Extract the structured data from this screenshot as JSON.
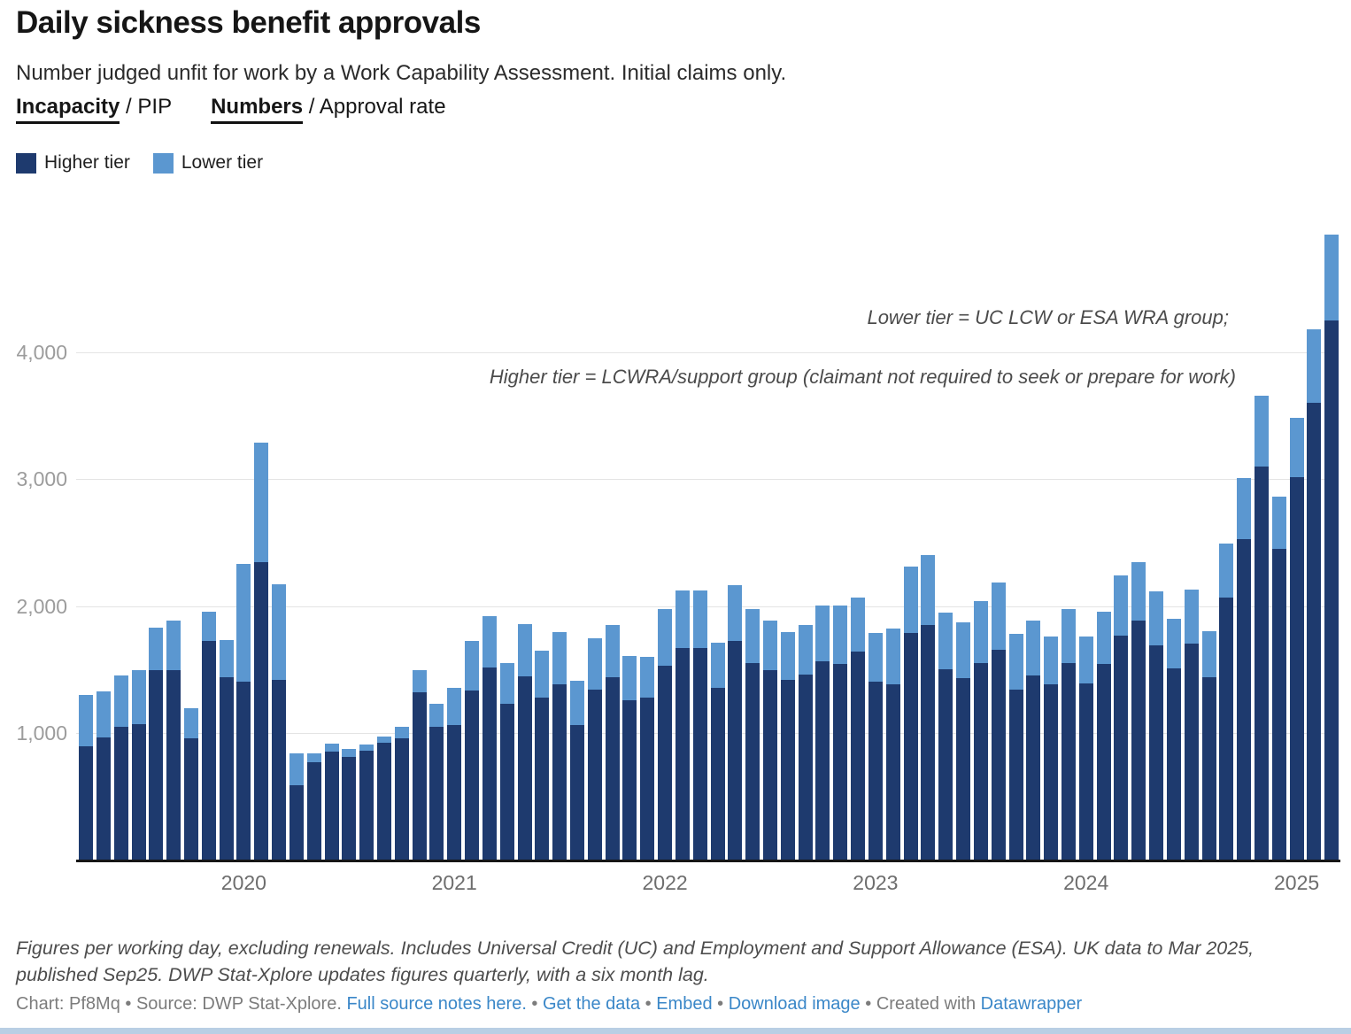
{
  "header": {
    "title": "Daily sickness benefit approvals",
    "subtitle": "Number judged unfit for work by a Work Capability Assessment. Initial claims only.",
    "toggle_benefit": {
      "active": "Incapacity",
      "rest": " / PIP"
    },
    "toggle_metric": {
      "active": "Numbers",
      "rest": " / Approval rate"
    }
  },
  "legend": [
    {
      "label": "Higher tier",
      "color": "#1e3a6e"
    },
    {
      "label": "Lower tier",
      "color": "#5b97d0"
    }
  ],
  "annotations": {
    "line1": "Lower tier = UC LCW or ESA WRA group;",
    "line2": "Higher tier = LCWRA/support group (claimant not required to seek or prepare for work)"
  },
  "colors": {
    "higher": "#1e3a6e",
    "lower": "#5b97d0",
    "grid": "#e4e4e4",
    "axis": "#161616",
    "link": "#3a87c8"
  },
  "chart_data": {
    "type": "bar",
    "stacked": true,
    "title": "Daily sickness benefit approvals",
    "xlabel": "",
    "ylabel": "",
    "ylim": [
      0,
      5000
    ],
    "grid": "horizontal",
    "legend_position": "top-left",
    "categories": [
      "Apr 2019",
      "May 2019",
      "Jun 2019",
      "Jul 2019",
      "Aug 2019",
      "Sep 2019",
      "Oct 2019",
      "Nov 2019",
      "Dec 2019",
      "Jan 2020",
      "Feb 2020",
      "Mar 2020",
      "Apr 2020",
      "May 2020",
      "Jun 2020",
      "Jul 2020",
      "Aug 2020",
      "Sep 2020",
      "Oct 2020",
      "Nov 2020",
      "Dec 2020",
      "Jan 2021",
      "Feb 2021",
      "Mar 2021",
      "Apr 2021",
      "May 2021",
      "Jun 2021",
      "Jul 2021",
      "Aug 2021",
      "Sep 2021",
      "Oct 2021",
      "Nov 2021",
      "Dec 2021",
      "Jan 2022",
      "Feb 2022",
      "Mar 2022",
      "Apr 2022",
      "May 2022",
      "Jun 2022",
      "Jul 2022",
      "Aug 2022",
      "Sep 2022",
      "Oct 2022",
      "Nov 2022",
      "Dec 2022",
      "Jan 2023",
      "Feb 2023",
      "Mar 2023",
      "Apr 2023",
      "May 2023",
      "Jun 2023",
      "Jul 2023",
      "Aug 2023",
      "Sep 2023",
      "Oct 2023",
      "Nov 2023",
      "Dec 2023",
      "Jan 2024",
      "Feb 2024",
      "Mar 2024",
      "Apr 2024",
      "May 2024",
      "Jun 2024",
      "Jul 2024",
      "Aug 2024",
      "Sep 2024",
      "Oct 2024",
      "Nov 2024",
      "Dec 2024",
      "Jan 2025",
      "Feb 2025",
      "Mar 2025"
    ],
    "series": [
      {
        "name": "Higher tier",
        "color": "#1e3a6e",
        "values": [
          900,
          970,
          1050,
          1075,
          1500,
          1495,
          960,
          1730,
          1445,
          1410,
          2350,
          1420,
          590,
          775,
          860,
          815,
          865,
          930,
          960,
          1320,
          1055,
          1065,
          1340,
          1520,
          1230,
          1450,
          1285,
          1385,
          1065,
          1345,
          1440,
          1260,
          1280,
          1530,
          1670,
          1670,
          1360,
          1730,
          1555,
          1500,
          1420,
          1465,
          1565,
          1545,
          1640,
          1410,
          1385,
          1790,
          1855,
          1505,
          1435,
          1555,
          1655,
          1345,
          1455,
          1385,
          1550,
          1390,
          1545,
          1770,
          1885,
          1695,
          1515,
          1705,
          1445,
          2070,
          2525,
          3100,
          2450,
          3015,
          3600,
          4250
        ]
      },
      {
        "name": "Lower tier",
        "color": "#5b97d0",
        "values": [
          405,
          360,
          405,
          420,
          330,
          390,
          235,
          225,
          290,
          920,
          940,
          750,
          250,
          70,
          60,
          60,
          50,
          45,
          90,
          180,
          180,
          290,
          390,
          400,
          320,
          410,
          365,
          415,
          350,
          400,
          415,
          350,
          325,
          445,
          455,
          455,
          350,
          435,
          420,
          385,
          380,
          390,
          440,
          460,
          430,
          380,
          440,
          525,
          545,
          445,
          440,
          485,
          530,
          440,
          435,
          375,
          425,
          370,
          415,
          470,
          465,
          425,
          385,
          425,
          360,
          425,
          485,
          555,
          415,
          465,
          580,
          675
        ]
      }
    ],
    "yticks": [
      {
        "value": 1000,
        "label": "1,000"
      },
      {
        "value": 2000,
        "label": "2,000"
      },
      {
        "value": 3000,
        "label": "3,000"
      },
      {
        "value": 4000,
        "label": "4,000"
      }
    ],
    "year_labels": [
      {
        "label": "2020",
        "month_index": 9
      },
      {
        "label": "2021",
        "month_index": 21
      },
      {
        "label": "2022",
        "month_index": 33
      },
      {
        "label": "2023",
        "month_index": 45
      },
      {
        "label": "2024",
        "month_index": 57
      },
      {
        "label": "2025",
        "month_index": 69
      }
    ]
  },
  "footer": {
    "note": "Figures per working day, excluding renewals. Includes Universal Credit (UC) and Employment and Support Allowance (ESA). UK data to Mar 2025, published Sep25. DWP Stat-Xplore updates figures quarterly, with a six month lag.",
    "meta_prefix": "Chart: Pf8Mq • Source: DWP Stat-Xplore. ",
    "link_source_notes": "Full source notes here.",
    "sep1": " • ",
    "link_get_data": "Get the data",
    "sep2": " • ",
    "link_embed": "Embed",
    "sep3": "  • ",
    "link_download": "Download image",
    "sep4": " • ",
    "created_with": "Created with ",
    "link_datawrapper": "Datawrapper"
  }
}
